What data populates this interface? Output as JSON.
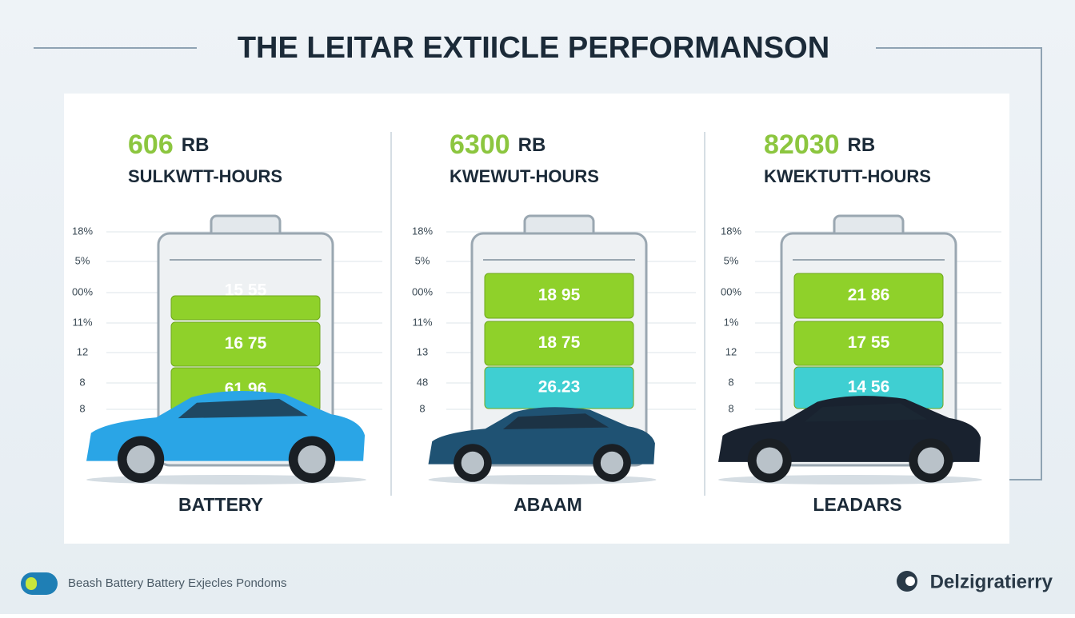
{
  "header": {
    "title": "THE LEITAR EXTIICLE PERFORMANSON"
  },
  "panels": [
    {
      "value": "606",
      "unit": "RB",
      "subtitle": "SULKWTT-HOURS",
      "axis_labels": [
        "18%",
        "5%",
        "00%",
        "11%",
        "12",
        "8",
        "8"
      ],
      "segments": [
        "15 55",
        "16 75",
        "61 96"
      ],
      "label": "BATTERY"
    },
    {
      "value": "6300",
      "unit": "RB",
      "subtitle": "KWEWUT-HOURS",
      "axis_labels": [
        "18%",
        "5%",
        "00%",
        "11%",
        "13",
        "48",
        "8"
      ],
      "segments": [
        "18 95",
        "18 75",
        "26.23"
      ],
      "label": "ABAAM"
    },
    {
      "value": "82030",
      "unit": "RB",
      "subtitle": "KWEKTUTT-HOURS",
      "axis_labels": [
        "18%",
        "5%",
        "00%",
        "1%",
        "12",
        "8",
        "8"
      ],
      "segments": [
        "21 86",
        "17 55",
        "14 56"
      ],
      "label": "LEADARS"
    }
  ],
  "footer": {
    "caption": "Beash Battery Battery Exjecles Pondoms",
    "brand": "Delzigratierry"
  }
}
